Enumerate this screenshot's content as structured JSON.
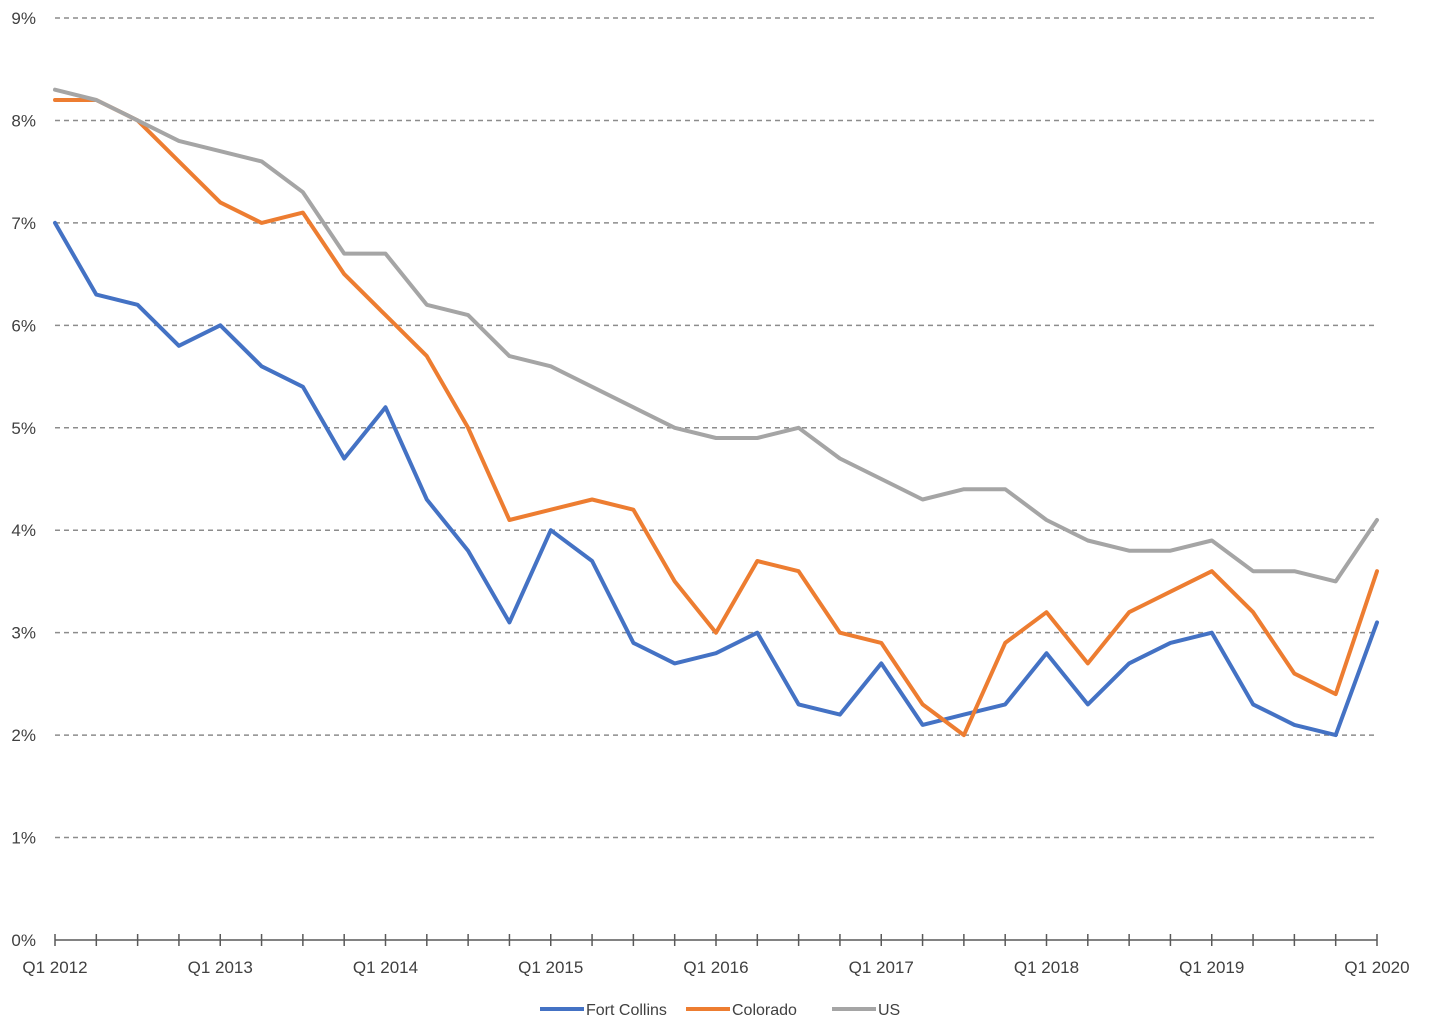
{
  "chart_data": {
    "type": "line",
    "title": "",
    "xlabel": "",
    "ylabel": "",
    "ylim": [
      0,
      9
    ],
    "y_ticks": [
      "0%",
      "1%",
      "2%",
      "3%",
      "4%",
      "5%",
      "6%",
      "7%",
      "8%",
      "9%"
    ],
    "x_tick_labels": [
      "Q1 2012",
      "Q1 2013",
      "Q1 2014",
      "Q1 2015",
      "Q1 2016",
      "Q1 2017",
      "Q1 2018",
      "Q1 2019",
      "Q1 2020"
    ],
    "x": [
      "Q1 2012",
      "Q2 2012",
      "Q3 2012",
      "Q4 2012",
      "Q1 2013",
      "Q2 2013",
      "Q3 2013",
      "Q4 2013",
      "Q1 2014",
      "Q2 2014",
      "Q3 2014",
      "Q4 2014",
      "Q1 2015",
      "Q2 2015",
      "Q3 2015",
      "Q4 2015",
      "Q1 2016",
      "Q2 2016",
      "Q3 2016",
      "Q4 2016",
      "Q1 2017",
      "Q2 2017",
      "Q3 2017",
      "Q4 2017",
      "Q1 2018",
      "Q2 2018",
      "Q3 2018",
      "Q4 2018",
      "Q1 2019",
      "Q2 2019",
      "Q3 2019",
      "Q4 2019",
      "Q1 2020"
    ],
    "grid": "horizontal-dashed",
    "legend_position": "bottom",
    "series": [
      {
        "name": "Fort Collins",
        "color": "#4472C4",
        "values": [
          7.0,
          6.3,
          6.2,
          5.8,
          6.0,
          5.6,
          5.4,
          4.7,
          5.2,
          4.3,
          3.8,
          3.1,
          4.0,
          3.7,
          2.9,
          2.7,
          2.8,
          3.0,
          2.3,
          2.2,
          2.7,
          2.1,
          2.2,
          2.3,
          2.8,
          2.3,
          2.7,
          2.9,
          3.0,
          2.3,
          2.1,
          2.0,
          3.1
        ]
      },
      {
        "name": "Colorado",
        "color": "#ED7D31",
        "values": [
          8.2,
          8.2,
          8.0,
          7.6,
          7.2,
          7.0,
          7.1,
          6.5,
          6.1,
          5.7,
          5.0,
          4.1,
          4.2,
          4.3,
          4.2,
          3.5,
          3.0,
          3.7,
          3.6,
          3.0,
          2.9,
          2.3,
          2.0,
          2.9,
          3.2,
          2.7,
          3.2,
          3.4,
          3.6,
          3.2,
          2.6,
          2.4,
          3.6
        ]
      },
      {
        "name": "US",
        "color": "#A5A5A5",
        "values": [
          8.3,
          8.2,
          8.0,
          7.8,
          7.7,
          7.6,
          7.3,
          6.7,
          6.7,
          6.2,
          6.1,
          5.7,
          5.6,
          5.4,
          5.2,
          5.0,
          4.9,
          4.9,
          5.0,
          4.7,
          4.5,
          4.3,
          4.4,
          4.4,
          4.1,
          3.9,
          3.8,
          3.8,
          3.9,
          3.6,
          3.6,
          3.5,
          4.1
        ]
      }
    ]
  }
}
